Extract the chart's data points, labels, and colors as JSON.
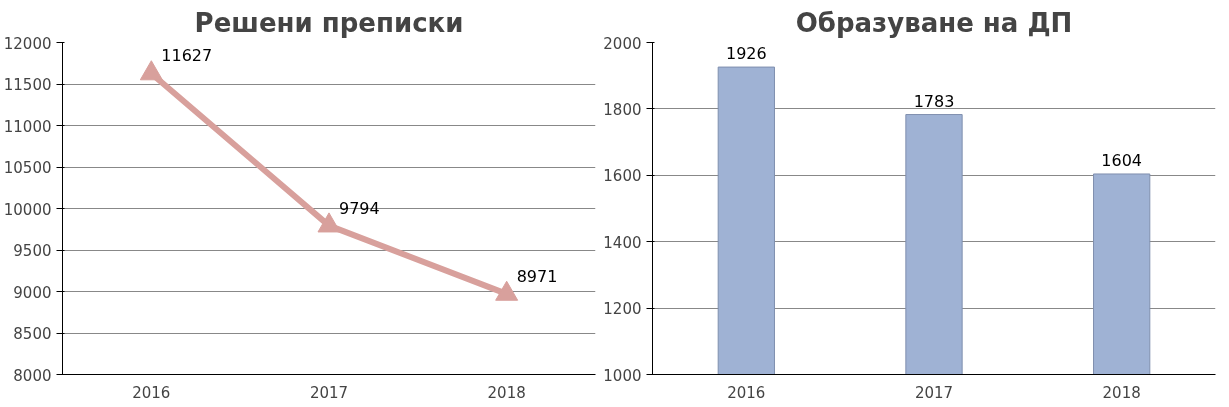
{
  "chart_data": [
    {
      "type": "line",
      "title": "Решени преписки",
      "categories": [
        "2016",
        "2017",
        "2018"
      ],
      "values": [
        11627,
        9794,
        8971
      ],
      "color": "#d8a09c",
      "ylim": [
        8000,
        12000
      ],
      "yticks": [
        8000,
        8500,
        9000,
        9500,
        10000,
        10500,
        11000,
        11500,
        12000
      ],
      "grid": "y",
      "marker": "triangle",
      "data_labels": true
    },
    {
      "type": "bar",
      "title": "Образуване на ДП",
      "categories": [
        "2016",
        "2017",
        "2018"
      ],
      "values": [
        1926,
        1783,
        1604
      ],
      "color": "#9fb2d4",
      "ylim": [
        1000,
        2000
      ],
      "yticks": [
        1000,
        1200,
        1400,
        1600,
        1800,
        2000
      ],
      "grid": "y",
      "data_labels": true
    }
  ]
}
